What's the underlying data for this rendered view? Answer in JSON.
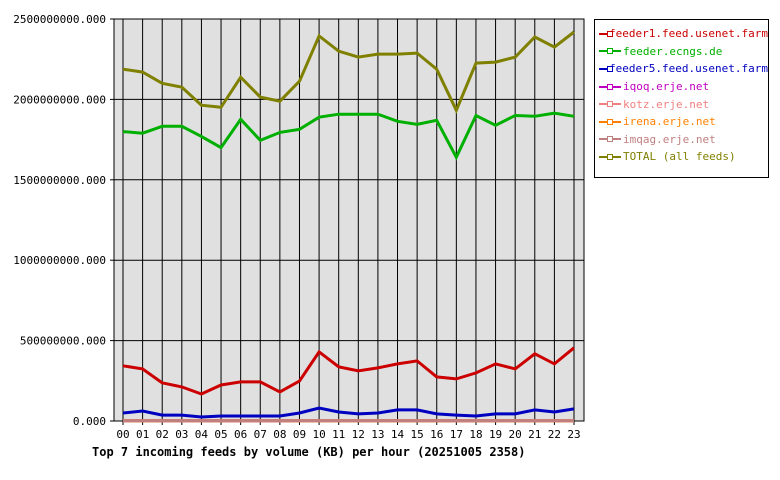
{
  "chart_data": {
    "type": "line",
    "title": "Top 7 incoming feeds by volume (KB) per hour (20251005 2358)",
    "xlabel": "",
    "ylabel": "",
    "ylim": [
      0,
      2500000000
    ],
    "yticks": [
      "0.000",
      "500000000.000",
      "1000000000.000",
      "1500000000.000",
      "2000000000.000",
      "2500000000.000"
    ],
    "grid": true,
    "legend_position": "right",
    "categories": [
      "00",
      "01",
      "02",
      "03",
      "04",
      "05",
      "06",
      "07",
      "08",
      "09",
      "10",
      "11",
      "12",
      "13",
      "14",
      "15",
      "16",
      "17",
      "18",
      "19",
      "20",
      "21",
      "22",
      "23"
    ],
    "series": [
      {
        "name": "feeder1.feed.usenet.farm",
        "color": "#cc0000",
        "values": [
          343000000,
          324000000,
          237000000,
          212000000,
          168000000,
          224000000,
          243000000,
          243000000,
          181000000,
          249000000,
          430000000,
          337000000,
          312000000,
          330000000,
          355000000,
          374000000,
          274000000,
          262000000,
          299000000,
          355000000,
          324000000,
          418000000,
          355000000,
          455000000
        ]
      },
      {
        "name": "feeder.ecngs.de",
        "color": "#00b000",
        "values": [
          1800000000,
          1790000000,
          1833000000,
          1833000000,
          1770000000,
          1700000000,
          1876000000,
          1745000000,
          1795000000,
          1814000000,
          1889000000,
          1908000000,
          1908000000,
          1908000000,
          1864000000,
          1845000000,
          1870000000,
          1640000000,
          1900000000,
          1839000000,
          1900000000,
          1895000000,
          1914000000,
          1895000000
        ]
      },
      {
        "name": "feeder5.feed.usenet.farm",
        "color": "#0000c0",
        "values": [
          50000000,
          62000000,
          37000000,
          37000000,
          25000000,
          31000000,
          31000000,
          31000000,
          31000000,
          50000000,
          81000000,
          56000000,
          44000000,
          50000000,
          69000000,
          69000000,
          44000000,
          37000000,
          31000000,
          44000000,
          44000000,
          69000000,
          56000000,
          75000000
        ]
      },
      {
        "name": "iqoq.erje.net",
        "color": "#c000c0",
        "values": [
          2000000,
          2000000,
          2000000,
          2000000,
          2000000,
          2000000,
          2000000,
          2000000,
          2000000,
          2000000,
          2000000,
          2000000,
          2000000,
          2000000,
          2000000,
          2000000,
          2000000,
          2000000,
          2000000,
          2000000,
          2000000,
          2000000,
          2000000,
          2000000
        ]
      },
      {
        "name": "kotz.erje.net",
        "color": "#f08080",
        "values": [
          2000000,
          2000000,
          2000000,
          2000000,
          2000000,
          2000000,
          2000000,
          2000000,
          2000000,
          2000000,
          2000000,
          2000000,
          2000000,
          2000000,
          2000000,
          2000000,
          2000000,
          2000000,
          2000000,
          2000000,
          2000000,
          2000000,
          2000000,
          2000000
        ]
      },
      {
        "name": "irena.erje.net",
        "color": "#ff8000",
        "values": [
          2000000,
          2000000,
          2000000,
          2000000,
          2000000,
          2000000,
          2000000,
          2000000,
          2000000,
          2000000,
          2000000,
          2000000,
          2000000,
          2000000,
          2000000,
          2000000,
          2000000,
          2000000,
          2000000,
          2000000,
          2000000,
          2000000,
          2000000,
          2000000
        ]
      },
      {
        "name": "imqag.erje.net",
        "color": "#c08080",
        "values": [
          2000000,
          2000000,
          2000000,
          2000000,
          2000000,
          2000000,
          2000000,
          2000000,
          2000000,
          2000000,
          2000000,
          2000000,
          2000000,
          2000000,
          2000000,
          2000000,
          2000000,
          2000000,
          2000000,
          2000000,
          2000000,
          2000000,
          2000000,
          2000000
        ]
      },
      {
        "name": "TOTAL (all feeds)",
        "color": "#808000",
        "values": [
          2188000000,
          2170000000,
          2100000000,
          2076000000,
          1964000000,
          1951000000,
          2138000000,
          2014000000,
          1989000000,
          2113000000,
          2394000000,
          2300000000,
          2263000000,
          2282000000,
          2282000000,
          2288000000,
          2188000000,
          1932000000,
          2226000000,
          2232000000,
          2263000000,
          2388000000,
          2325000000,
          2419000000
        ]
      }
    ]
  },
  "legend": {
    "items": [
      {
        "label": "feeder1.feed.usenet.farm",
        "color": "#cc0000"
      },
      {
        "label": "feeder.ecngs.de",
        "color": "#00b000"
      },
      {
        "label": "feeder5.feed.usenet.farm",
        "color": "#0000c0"
      },
      {
        "label": "iqoq.erje.net",
        "color": "#c000c0"
      },
      {
        "label": "kotz.erje.net",
        "color": "#f08080"
      },
      {
        "label": "irena.erje.net",
        "color": "#ff8000"
      },
      {
        "label": "imqag.erje.net",
        "color": "#c08080"
      },
      {
        "label": "TOTAL (all feeds)",
        "color": "#808000"
      }
    ]
  },
  "colors": {
    "plot_bg": "#e0e0e0",
    "grid": "#000000"
  }
}
